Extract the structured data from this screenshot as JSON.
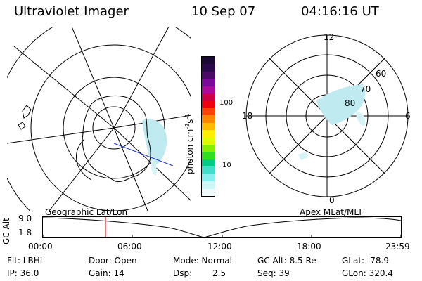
{
  "header": {
    "instrument": "Ultraviolet Imager",
    "date": "10 Sep 07",
    "time": "04:16:16 UT"
  },
  "colorbar": {
    "unit_label": "photon cm",
    "unit_sup1": "-2",
    "unit_s": "s",
    "unit_sup2": "-1",
    "ticks": [
      "100",
      "10"
    ],
    "colors": [
      "#1a0a33",
      "#2a0a4a",
      "#4a0a66",
      "#7a0a99",
      "#aa0a99",
      "#cc0044",
      "#ee0011",
      "#ff4400",
      "#ff8800",
      "#ffbb00",
      "#ffee00",
      "#ddff00",
      "#88ee00",
      "#33dd22",
      "#00cc88",
      "#44ddcc",
      "#88eeee",
      "#ccf6f6",
      "#f2fbfb"
    ]
  },
  "polar": {
    "labels": {
      "top": "12",
      "left": "18",
      "right": "6",
      "bottom": "0",
      "lat60": "60",
      "lat70": "70",
      "lat80": "80"
    }
  },
  "altitude_plot": {
    "ylabel": "GC Alt",
    "yticks": [
      "9.0",
      "1.8"
    ],
    "left_title": "Geographic Lat/Lon",
    "right_title": "Apex MLat/MLT",
    "xticks": [
      "00:00",
      "06:00",
      "12:00",
      "18:00",
      "23:59"
    ],
    "current_marker_color": "#cc0000"
  },
  "footer": {
    "row1": {
      "flt": "Flt: LBHL",
      "door": "Door: Open",
      "mode": "Mode: Normal",
      "gcalt": "GC Alt: 8.5 Re",
      "glat": "GLat: -78.9"
    },
    "row2": {
      "ip": "IP: 36.0",
      "gain": "Gain: 14",
      "dsp_label": "Dsp:",
      "dsp_value": "2.5",
      "seq": "Seq: 39",
      "glon": "GLon: 320.4"
    }
  }
}
